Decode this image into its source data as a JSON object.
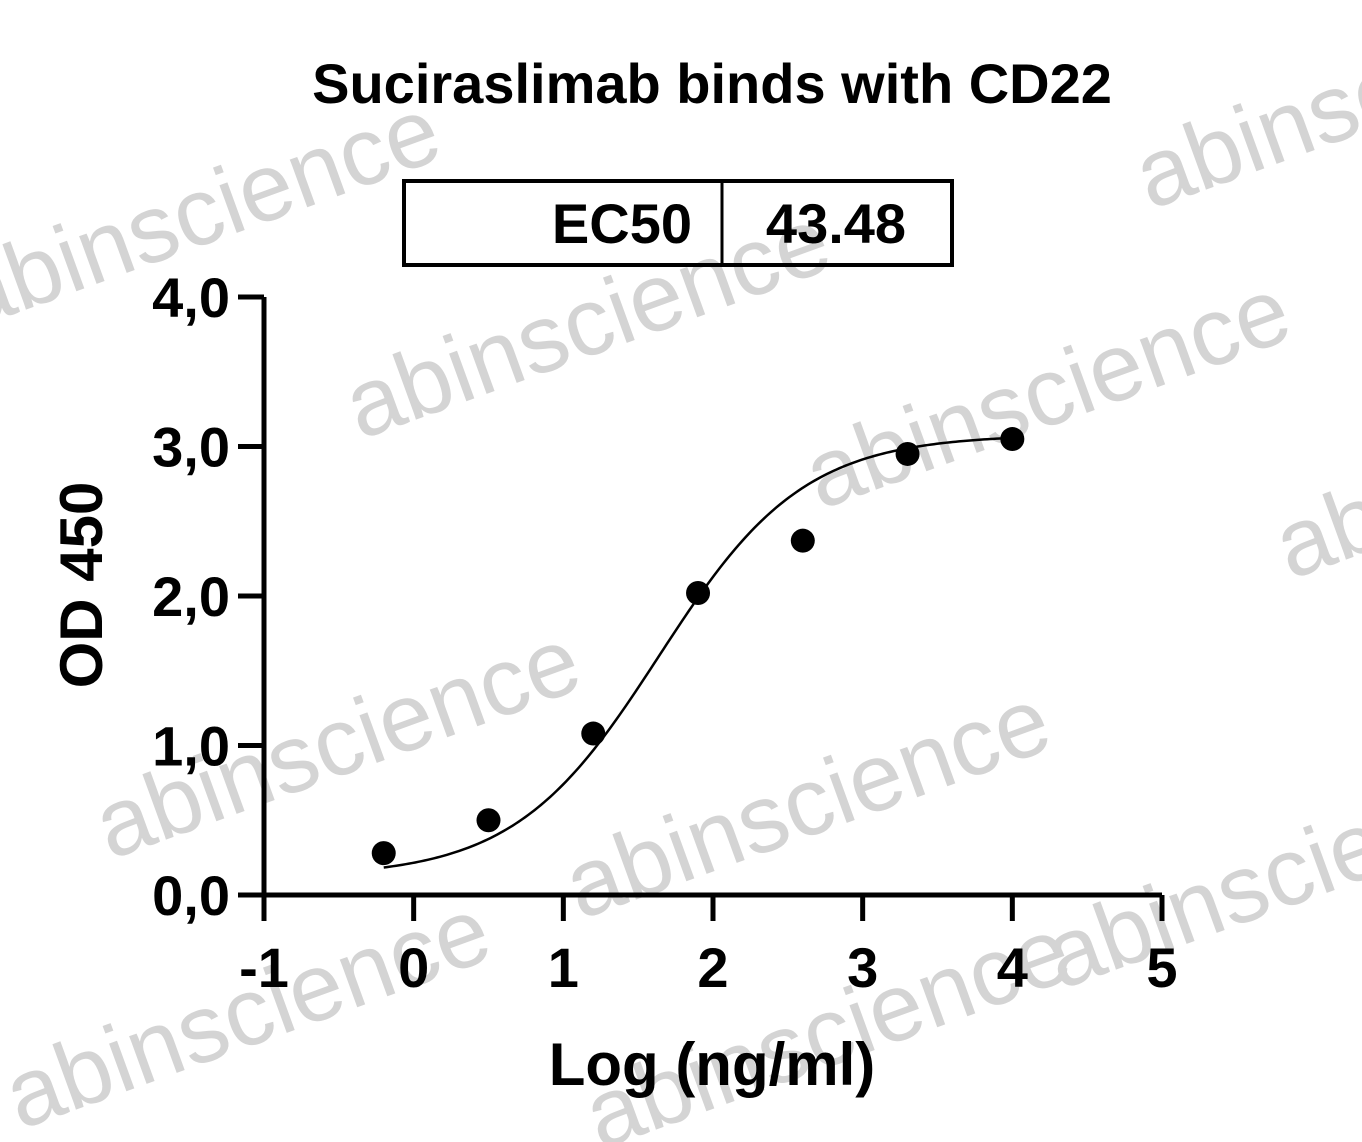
{
  "chart_data": {
    "type": "scatter",
    "title": "Suciraslimab binds with CD22",
    "xlabel": "Log (ng/ml)",
    "ylabel": "OD 450",
    "xlim": [
      -1,
      5
    ],
    "ylim": [
      0,
      4
    ],
    "x_ticks": [
      -1,
      0,
      1,
      2,
      3,
      4,
      5
    ],
    "x_tick_labels": [
      "-1",
      "0",
      "1",
      "2",
      "3",
      "4",
      "5"
    ],
    "y_ticks": [
      0,
      1,
      2,
      3,
      4
    ],
    "y_tick_labels": [
      "0,0",
      "1,0",
      "2,0",
      "3,0",
      "4,0"
    ],
    "series": [
      {
        "x": [
          -0.2,
          0.5,
          1.2,
          1.9,
          2.6,
          3.3,
          4.0
        ],
        "y": [
          0.28,
          0.5,
          1.08,
          2.02,
          2.37,
          2.95,
          3.05
        ]
      }
    ],
    "fit_curve": {
      "model": "4-parameter logistic",
      "bottom": 0.12,
      "top": 3.08,
      "log_ec50": 1.64,
      "hill_slope": 0.9,
      "x_range": [
        -0.2,
        4.0
      ]
    },
    "ec50_table": {
      "label": "EC50",
      "value": "43.48"
    },
    "grid": false,
    "watermark": "abinscience"
  }
}
